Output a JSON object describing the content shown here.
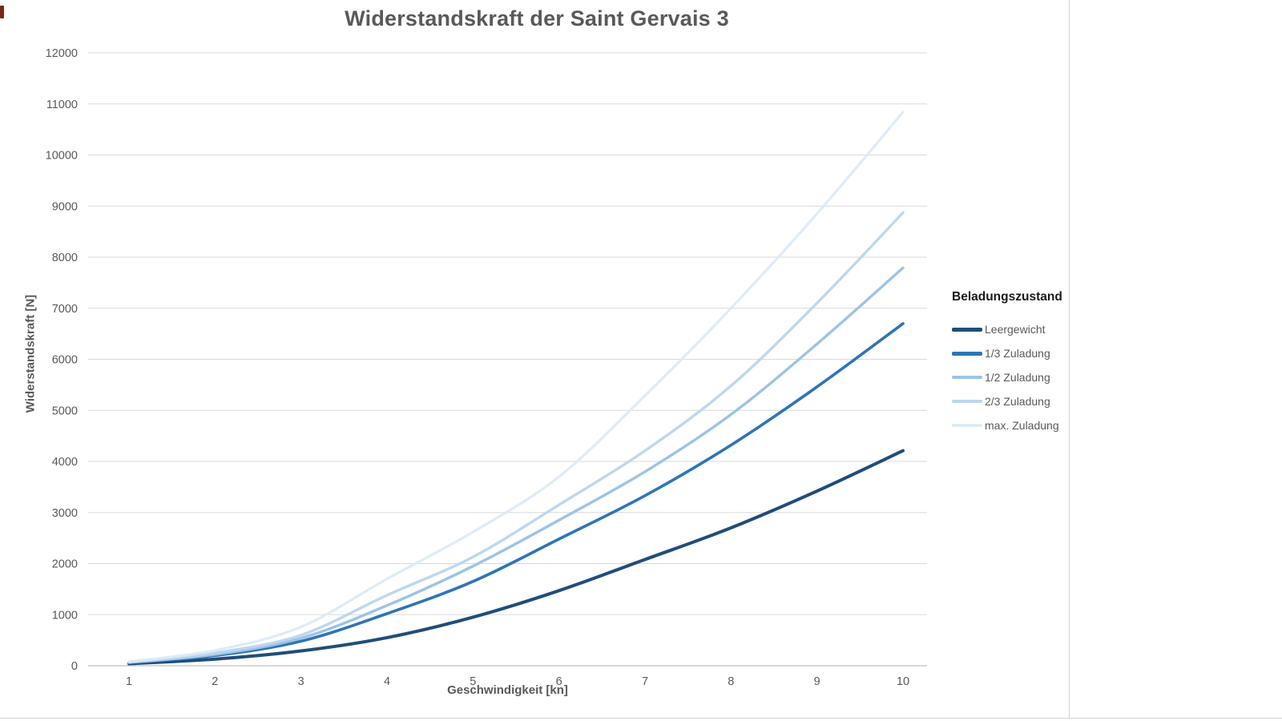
{
  "chart_data": {
    "type": "line",
    "title": "Widerstandskraft der Saint Gervais 3",
    "xlabel": "Geschwindigkeit [kn]",
    "ylabel": "Widerstandskraft [N]",
    "legend_title": "Beladungszustand",
    "legend_position": "right",
    "grid": true,
    "smooth": true,
    "x": [
      1,
      2,
      3,
      4,
      5,
      6,
      7,
      8,
      9,
      10
    ],
    "xlim": [
      1,
      10
    ],
    "ylim": [
      0,
      12000
    ],
    "yticks": [
      0,
      1000,
      2000,
      3000,
      4000,
      5000,
      6000,
      7000,
      8000,
      9000,
      10000,
      11000,
      12000
    ],
    "series": [
      {
        "name": "Leergewicht",
        "color": "#1F4E79",
        "width": 4,
        "values": [
          40,
          130,
          290,
          550,
          950,
          1470,
          2080,
          2700,
          3420,
          4210
        ]
      },
      {
        "name": "1/3 Zuladung",
        "color": "#2E75B6",
        "width": 3.6,
        "values": [
          60,
          200,
          480,
          1020,
          1650,
          2480,
          3330,
          4320,
          5460,
          6700
        ]
      },
      {
        "name": "1/2 Zuladung",
        "color": "#9DC3E6",
        "width": 3.4,
        "values": [
          65,
          220,
          540,
          1180,
          1950,
          2850,
          3800,
          4920,
          6300,
          7790
        ]
      },
      {
        "name": "2/3 Zuladung",
        "color": "#BDD7EE",
        "width": 3.4,
        "values": [
          70,
          250,
          600,
          1380,
          2130,
          3150,
          4210,
          5480,
          7100,
          8870
        ]
      },
      {
        "name": "max. Zuladung",
        "color": "#DEEBF7",
        "width": 3.2,
        "values": [
          80,
          300,
          760,
          1700,
          2620,
          3700,
          5290,
          7000,
          8850,
          10840
        ]
      }
    ],
    "axis_color": "#BFBFBF",
    "gridline_color": "#D9D9D9",
    "tick_label_color": "#595959"
  }
}
